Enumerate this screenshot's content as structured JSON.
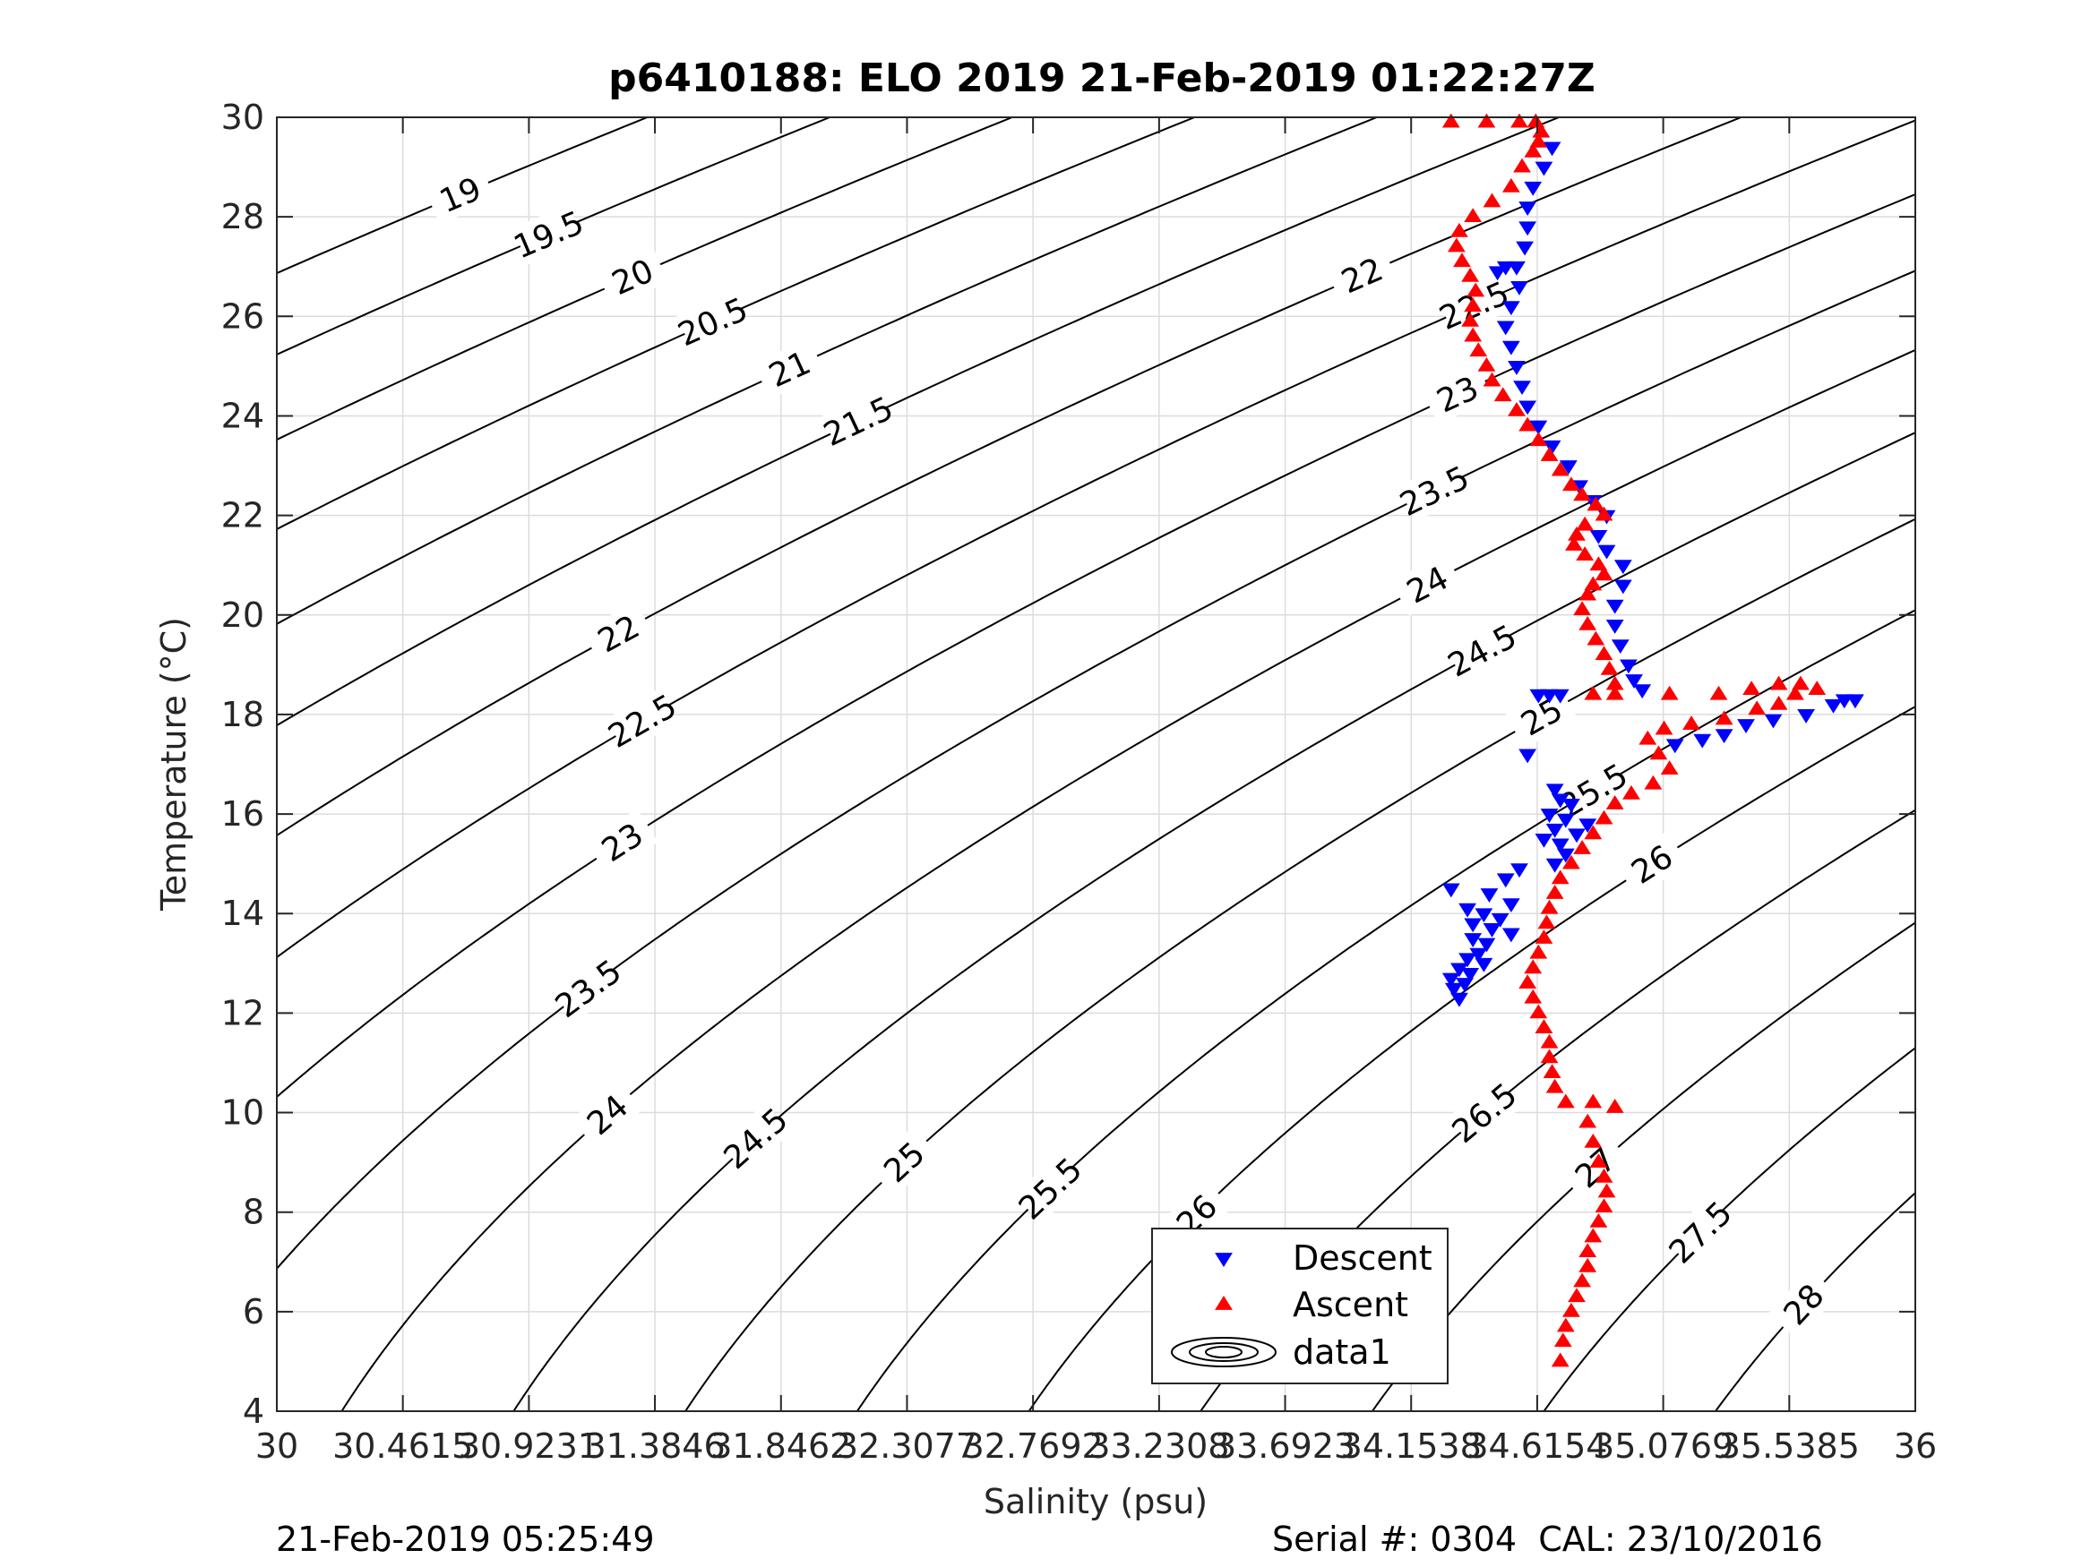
{
  "chart_data": {
    "type": "scatter",
    "title": "p6410188: ELO 2019 21-Feb-2019 01:22:27Z",
    "xlabel": "Salinity (psu)",
    "ylabel": "Temperature (°C)",
    "xlim": [
      30,
      36
    ],
    "ylim": [
      4,
      30
    ],
    "x_ticks": [
      30,
      30.4615,
      30.9231,
      31.3846,
      31.8462,
      32.3077,
      32.7692,
      33.2308,
      33.6923,
      34.1538,
      34.6154,
      35.0769,
      35.5385,
      36
    ],
    "x_tick_labels": [
      "30",
      "30.4615",
      "30.9231",
      "31.3846",
      "31.8462",
      "32.3077",
      "32.7692",
      "33.2308",
      "33.6923",
      "34.1538",
      "34.6154",
      "35.0769",
      "35.5385",
      "36"
    ],
    "y_ticks": [
      4,
      6,
      8,
      10,
      12,
      14,
      16,
      18,
      20,
      22,
      24,
      26,
      28,
      30
    ],
    "y_tick_labels": [
      "4",
      "6",
      "8",
      "10",
      "12",
      "14",
      "16",
      "18",
      "20",
      "22",
      "24",
      "26",
      "28",
      "30"
    ],
    "grid": true,
    "legend_position": "bottom-center",
    "contours": {
      "levels": [
        19,
        19.5,
        20,
        20.5,
        21,
        21.5,
        22,
        22.5,
        23,
        23.5,
        24,
        24.5,
        25,
        25.5,
        26,
        26.5,
        27,
        27.5,
        28
      ],
      "color": "#000000"
    },
    "series": [
      {
        "name": "Descent",
        "marker": "triangle-down",
        "color": "#0000ff",
        "points": [
          [
            34.67,
            29.4
          ],
          [
            34.64,
            29.0
          ],
          [
            34.6,
            28.6
          ],
          [
            34.58,
            28.2
          ],
          [
            34.58,
            27.8
          ],
          [
            34.57,
            27.4
          ],
          [
            34.54,
            27.0
          ],
          [
            34.5,
            27.0
          ],
          [
            34.47,
            26.9
          ],
          [
            34.55,
            26.6
          ],
          [
            34.52,
            26.2
          ],
          [
            34.5,
            25.8
          ],
          [
            34.52,
            25.4
          ],
          [
            34.54,
            25.0
          ],
          [
            34.56,
            24.6
          ],
          [
            34.58,
            24.2
          ],
          [
            34.62,
            23.8
          ],
          [
            34.67,
            23.4
          ],
          [
            34.73,
            23.0
          ],
          [
            34.77,
            22.6
          ],
          [
            34.82,
            22.3
          ],
          [
            34.87,
            22.0
          ],
          [
            34.84,
            21.6
          ],
          [
            34.87,
            21.3
          ],
          [
            34.93,
            21.0
          ],
          [
            34.93,
            20.6
          ],
          [
            34.9,
            20.2
          ],
          [
            34.9,
            19.8
          ],
          [
            34.92,
            19.4
          ],
          [
            34.95,
            19.0
          ],
          [
            34.97,
            18.7
          ],
          [
            35.0,
            18.5
          ],
          [
            34.62,
            18.4
          ],
          [
            34.66,
            18.4
          ],
          [
            34.7,
            18.4
          ],
          [
            35.78,
            18.3
          ],
          [
            35.74,
            18.3
          ],
          [
            35.7,
            18.2
          ],
          [
            35.6,
            18.0
          ],
          [
            35.48,
            17.9
          ],
          [
            35.38,
            17.8
          ],
          [
            35.3,
            17.6
          ],
          [
            35.22,
            17.5
          ],
          [
            35.12,
            17.4
          ],
          [
            34.58,
            17.2
          ],
          [
            34.68,
            16.5
          ],
          [
            34.7,
            16.3
          ],
          [
            34.74,
            16.2
          ],
          [
            34.66,
            16.0
          ],
          [
            34.72,
            15.9
          ],
          [
            34.8,
            15.8
          ],
          [
            34.68,
            15.7
          ],
          [
            34.76,
            15.6
          ],
          [
            34.64,
            15.5
          ],
          [
            34.7,
            15.4
          ],
          [
            34.72,
            15.2
          ],
          [
            34.68,
            15.0
          ],
          [
            34.55,
            14.9
          ],
          [
            34.5,
            14.7
          ],
          [
            34.3,
            14.5
          ],
          [
            34.44,
            14.4
          ],
          [
            34.52,
            14.2
          ],
          [
            34.36,
            14.1
          ],
          [
            34.42,
            14.0
          ],
          [
            34.48,
            13.9
          ],
          [
            34.38,
            13.8
          ],
          [
            34.45,
            13.7
          ],
          [
            34.52,
            13.6
          ],
          [
            34.38,
            13.5
          ],
          [
            34.43,
            13.4
          ],
          [
            34.4,
            13.2
          ],
          [
            34.36,
            13.1
          ],
          [
            34.42,
            13.0
          ],
          [
            34.33,
            12.9
          ],
          [
            34.37,
            12.8
          ],
          [
            34.3,
            12.7
          ],
          [
            34.35,
            12.6
          ],
          [
            34.31,
            12.5
          ],
          [
            34.33,
            12.3
          ]
        ]
      },
      {
        "name": "Ascent",
        "marker": "triangle-up",
        "color": "#ff0000",
        "points": [
          [
            34.3,
            29.9
          ],
          [
            34.43,
            29.9
          ],
          [
            34.55,
            29.9
          ],
          [
            34.61,
            29.9
          ],
          [
            34.63,
            29.7
          ],
          [
            34.62,
            29.5
          ],
          [
            34.6,
            29.3
          ],
          [
            34.56,
            29.0
          ],
          [
            34.52,
            28.6
          ],
          [
            34.45,
            28.3
          ],
          [
            34.38,
            28.0
          ],
          [
            34.33,
            27.7
          ],
          [
            34.32,
            27.4
          ],
          [
            34.34,
            27.1
          ],
          [
            34.37,
            26.8
          ],
          [
            34.39,
            26.5
          ],
          [
            34.38,
            26.2
          ],
          [
            34.37,
            25.9
          ],
          [
            34.38,
            25.6
          ],
          [
            34.4,
            25.3
          ],
          [
            34.43,
            25.0
          ],
          [
            34.45,
            24.7
          ],
          [
            34.49,
            24.4
          ],
          [
            34.54,
            24.1
          ],
          [
            34.58,
            23.8
          ],
          [
            34.62,
            23.5
          ],
          [
            34.66,
            23.2
          ],
          [
            34.7,
            22.9
          ],
          [
            34.74,
            22.6
          ],
          [
            34.78,
            22.4
          ],
          [
            34.83,
            22.2
          ],
          [
            34.86,
            22.0
          ],
          [
            34.79,
            21.8
          ],
          [
            34.76,
            21.6
          ],
          [
            34.75,
            21.4
          ],
          [
            34.79,
            21.2
          ],
          [
            34.84,
            21.0
          ],
          [
            34.86,
            20.8
          ],
          [
            34.82,
            20.6
          ],
          [
            34.8,
            20.4
          ],
          [
            34.78,
            20.1
          ],
          [
            34.8,
            19.8
          ],
          [
            34.83,
            19.5
          ],
          [
            34.86,
            19.2
          ],
          [
            34.88,
            18.9
          ],
          [
            34.9,
            18.6
          ],
          [
            34.82,
            18.4
          ],
          [
            34.9,
            18.4
          ],
          [
            35.1,
            18.4
          ],
          [
            35.28,
            18.4
          ],
          [
            35.4,
            18.5
          ],
          [
            35.5,
            18.6
          ],
          [
            35.58,
            18.6
          ],
          [
            35.64,
            18.5
          ],
          [
            35.56,
            18.4
          ],
          [
            35.5,
            18.2
          ],
          [
            35.42,
            18.1
          ],
          [
            35.3,
            17.9
          ],
          [
            35.18,
            17.8
          ],
          [
            35.08,
            17.7
          ],
          [
            35.02,
            17.5
          ],
          [
            35.06,
            17.2
          ],
          [
            35.1,
            16.9
          ],
          [
            35.04,
            16.6
          ],
          [
            34.96,
            16.4
          ],
          [
            34.9,
            16.2
          ],
          [
            34.86,
            15.9
          ],
          [
            34.82,
            15.6
          ],
          [
            34.78,
            15.3
          ],
          [
            34.74,
            15.0
          ],
          [
            34.7,
            14.7
          ],
          [
            34.68,
            14.4
          ],
          [
            34.66,
            14.1
          ],
          [
            34.65,
            13.8
          ],
          [
            34.64,
            13.5
          ],
          [
            34.62,
            13.2
          ],
          [
            34.6,
            12.9
          ],
          [
            34.58,
            12.6
          ],
          [
            34.6,
            12.3
          ],
          [
            34.62,
            12.0
          ],
          [
            34.64,
            11.7
          ],
          [
            34.66,
            11.4
          ],
          [
            34.66,
            11.1
          ],
          [
            34.67,
            10.8
          ],
          [
            34.68,
            10.5
          ],
          [
            34.72,
            10.2
          ],
          [
            34.82,
            10.2
          ],
          [
            34.9,
            10.1
          ],
          [
            34.8,
            9.8
          ],
          [
            34.82,
            9.4
          ],
          [
            34.84,
            9.0
          ],
          [
            34.86,
            8.7
          ],
          [
            34.87,
            8.4
          ],
          [
            34.86,
            8.1
          ],
          [
            34.84,
            7.8
          ],
          [
            34.82,
            7.5
          ],
          [
            34.8,
            7.2
          ],
          [
            34.8,
            6.9
          ],
          [
            34.78,
            6.6
          ],
          [
            34.76,
            6.3
          ],
          [
            34.74,
            6.0
          ],
          [
            34.72,
            5.7
          ],
          [
            34.71,
            5.4
          ],
          [
            34.7,
            5.0
          ]
        ]
      },
      {
        "name": "data1",
        "marker": "contour",
        "color": "#000000",
        "points": []
      }
    ]
  },
  "footer": {
    "timestamp": "21-Feb-2019 05:25:49",
    "serial": "Serial #: 0304  CAL: 23/10/2016"
  }
}
